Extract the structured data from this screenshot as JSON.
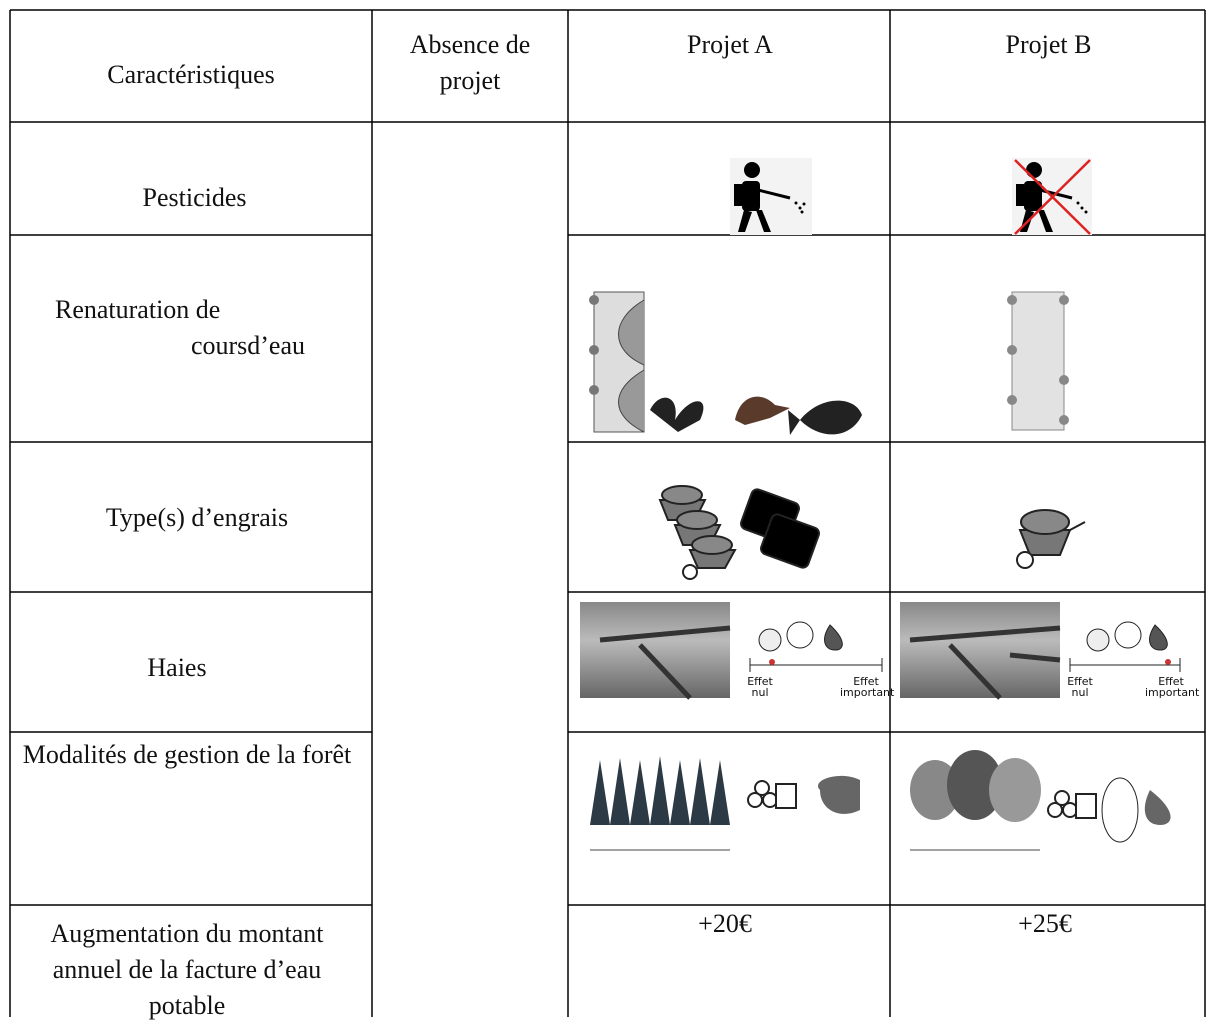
{
  "table": {
    "header": [
      "Caractéristiques",
      "Absence de projet",
      "Projet A",
      "Projet B"
    ],
    "rows": [
      {
        "label": "Pesticides"
      },
      {
        "label": "Renaturation de coursd’eau"
      },
      {
        "label": "Type(s) d’engrais"
      },
      {
        "label": "Haies",
        "scale_low": "Effet nul",
        "scale_high": "Effet important"
      },
      {
        "label": "Modalités de gestion de la forêt"
      },
      {
        "label": "Augmentation du montant annuel de la facture d’eau potable",
        "project_a": "+20€",
        "project_b": "+25€"
      }
    ]
  }
}
